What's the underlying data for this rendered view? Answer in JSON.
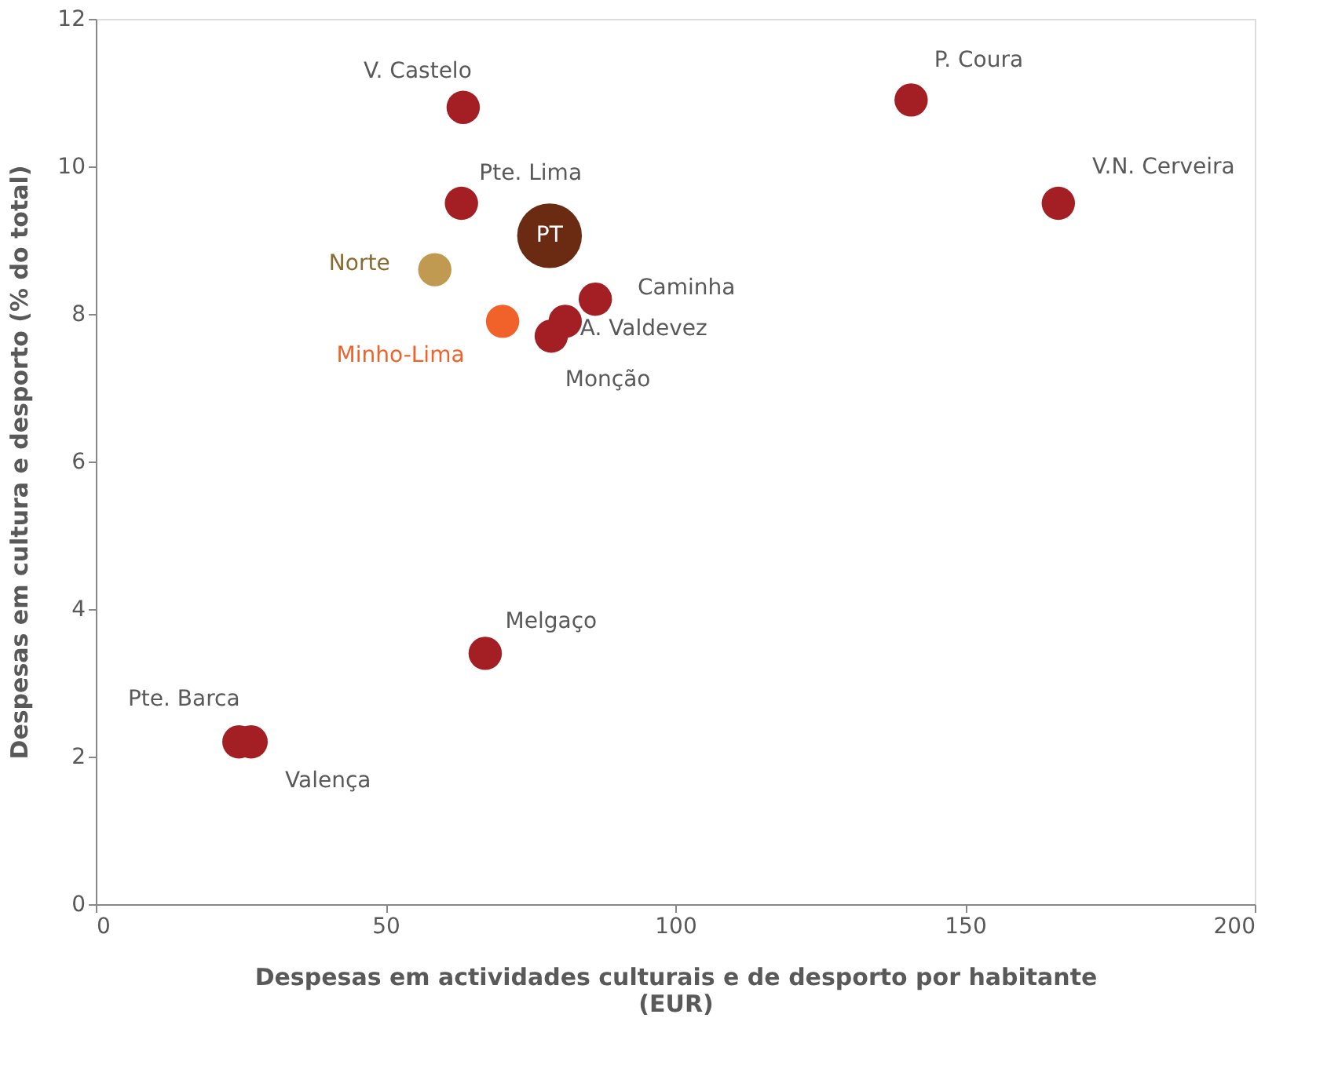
{
  "chart_data": {
    "type": "scatter",
    "xlabel": "Despesas em actividades culturais e de desporto por habitante (EUR)",
    "ylabel": "Despesas em cultura e desporto  (% do total)",
    "xlim": [
      0,
      200
    ],
    "xticks": [
      0,
      50,
      100,
      150,
      200
    ],
    "ylim": [
      0,
      12
    ],
    "yticks": [
      0,
      2,
      4,
      6,
      8,
      10,
      12
    ],
    "grid": false,
    "marker": "circle",
    "series": [
      {
        "name": "V. Castelo",
        "color": "#a31f24",
        "x": [
          63.4
        ],
        "values": [
          10.8
        ]
      },
      {
        "name": "P. Coura",
        "color": "#a31f24",
        "x": [
          140.7
        ],
        "values": [
          10.9
        ]
      },
      {
        "name": "V.N. Cerveira",
        "color": "#a31f24",
        "x": [
          166.1
        ],
        "values": [
          9.5
        ]
      },
      {
        "name": "Pte. Lima",
        "color": "#a31f24",
        "x": [
          63.1
        ],
        "values": [
          9.5
        ]
      },
      {
        "name": "Norte",
        "color": "#c09a50",
        "x": [
          58.5
        ],
        "values": [
          8.6
        ]
      },
      {
        "name": "Minho-Lima",
        "color": "#f0622a",
        "x": [
          70.2
        ],
        "values": [
          7.9
        ]
      },
      {
        "name": "Caminha",
        "color": "#a31f24",
        "x": [
          86.2
        ],
        "values": [
          8.2
        ]
      },
      {
        "name": "A. Valdevez",
        "color": "#a31f24",
        "x": [
          81.0
        ],
        "values": [
          7.9
        ]
      },
      {
        "name": "Monção",
        "color": "#a31f24",
        "x": [
          78.6
        ],
        "values": [
          7.7
        ]
      },
      {
        "name": "Melgaço",
        "color": "#a31f24",
        "x": [
          67.2
        ],
        "values": [
          3.4
        ]
      },
      {
        "name": "Pte. Barca",
        "color": "#a31f24",
        "x": [
          24.7
        ],
        "values": [
          2.2
        ]
      },
      {
        "name": "Valença",
        "color": "#a31f24",
        "x": [
          26.8
        ],
        "values": [
          2.2
        ]
      },
      {
        "name": "PT",
        "color": "#6b2a12",
        "x": [
          78.3
        ],
        "values": [
          9.06
        ]
      }
    ]
  }
}
